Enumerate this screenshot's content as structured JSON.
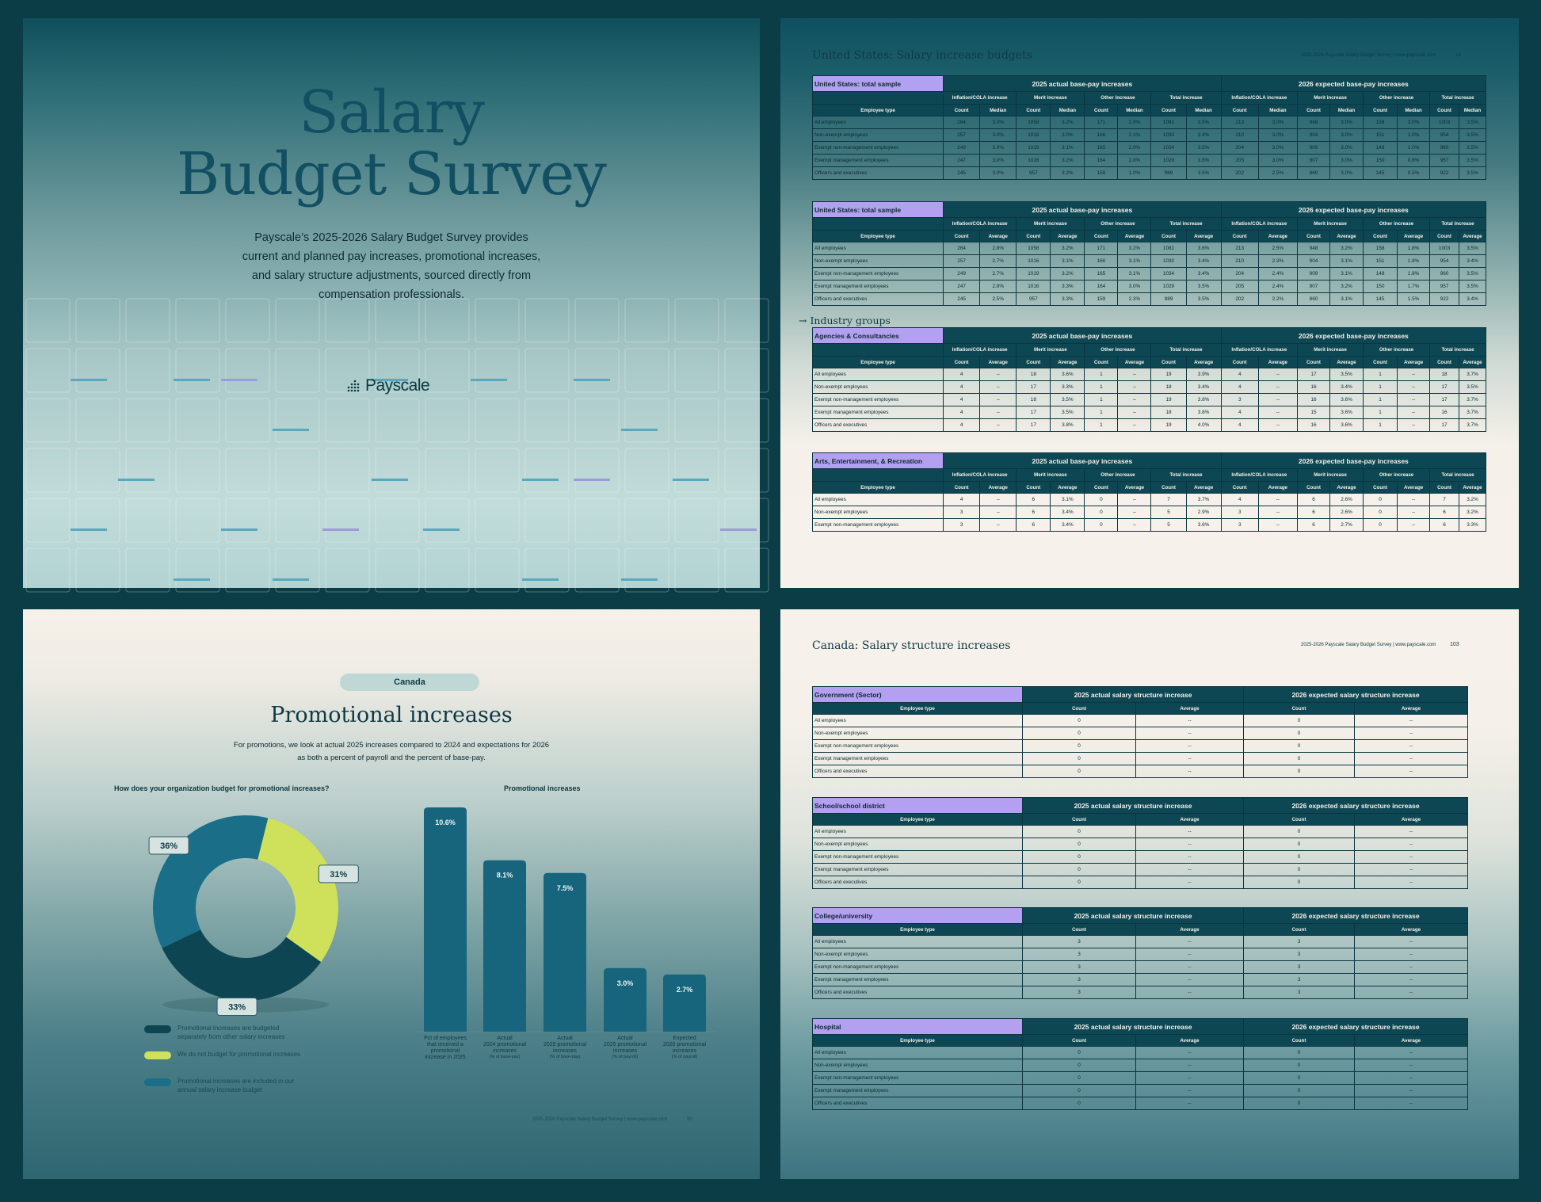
{
  "colors": {
    "frame": "#0b3d47",
    "teal": "#1a6e88",
    "dark": "#0e4552",
    "lime": "#cfe05a",
    "lavender": "#b3a0f0"
  },
  "cover": {
    "title_line1": "Salary",
    "title_line2": "Budget Survey",
    "description": "Payscale’s 2025-2026 Salary Budget Survey provides current and planned pay increases, promotional increases, and salary structure adjustments, sourced directly from compensation professionals.",
    "logo_text": "Payscale",
    "logo_icon": "payscale-dots-icon"
  },
  "us_page": {
    "title": "United States: Salary increase budgets",
    "header_right": "2025-2026 Payscale Salary Budget Survey | www.payscale.com",
    "page_no": "13",
    "industry_label": "Industry groups",
    "industry_icon": "arrow-right-icon",
    "tables": [
      {
        "tag": "United States: total sample",
        "stat": "Median",
        "rows": [
          [
            "All employees",
            "264",
            "3.0%",
            "1058",
            "3.2%",
            "171",
            "2.0%",
            "1081",
            "3.5%",
            "213",
            "3.0%",
            "948",
            "3.0%",
            "158",
            "3.0%",
            "1003",
            "3.5%"
          ],
          [
            "Non-exempt employees",
            "257",
            "3.0%",
            "1016",
            "3.0%",
            "166",
            "2.1%",
            "1030",
            "3.4%",
            "210",
            "3.0%",
            "904",
            "3.0%",
            "151",
            "1.0%",
            "954",
            "3.5%"
          ],
          [
            "Exempt non-management employees",
            "249",
            "3.0%",
            "1019",
            "3.1%",
            "165",
            "2.0%",
            "1034",
            "3.5%",
            "204",
            "3.0%",
            "909",
            "3.0%",
            "148",
            "1.0%",
            "960",
            "3.5%"
          ],
          [
            "Exempt management employees",
            "247",
            "3.0%",
            "1016",
            "3.2%",
            "164",
            "2.0%",
            "1029",
            "3.5%",
            "205",
            "3.0%",
            "907",
            "3.0%",
            "150",
            "0.8%",
            "957",
            "3.5%"
          ],
          [
            "Officers and executives",
            "245",
            "3.0%",
            "957",
            "3.2%",
            "159",
            "1.0%",
            "989",
            "3.5%",
            "202",
            "2.5%",
            "860",
            "3.0%",
            "145",
            "0.5%",
            "922",
            "3.5%"
          ]
        ]
      },
      {
        "tag": "United States: total sample",
        "stat": "Average",
        "rows": [
          [
            "All employees",
            "264",
            "2.8%",
            "1058",
            "3.2%",
            "171",
            "3.2%",
            "1081",
            "3.6%",
            "213",
            "2.5%",
            "948",
            "3.2%",
            "158",
            "1.8%",
            "1003",
            "3.5%"
          ],
          [
            "Non-exempt employees",
            "257",
            "2.7%",
            "1016",
            "3.1%",
            "166",
            "3.1%",
            "1030",
            "3.4%",
            "210",
            "2.3%",
            "904",
            "3.1%",
            "151",
            "1.8%",
            "954",
            "3.4%"
          ],
          [
            "Exempt non-management employees",
            "249",
            "2.7%",
            "1019",
            "3.2%",
            "165",
            "3.1%",
            "1034",
            "3.4%",
            "204",
            "2.4%",
            "909",
            "3.1%",
            "148",
            "1.8%",
            "960",
            "3.5%"
          ],
          [
            "Exempt management employees",
            "247",
            "2.8%",
            "1016",
            "3.3%",
            "164",
            "3.0%",
            "1029",
            "3.5%",
            "205",
            "2.4%",
            "907",
            "3.2%",
            "150",
            "1.7%",
            "957",
            "3.5%"
          ],
          [
            "Officers and executives",
            "245",
            "2.5%",
            "957",
            "3.3%",
            "159",
            "2.3%",
            "989",
            "3.5%",
            "202",
            "2.2%",
            "860",
            "3.1%",
            "145",
            "1.5%",
            "922",
            "3.4%"
          ]
        ]
      },
      {
        "tag": "Agencies & Consultancies",
        "stat": "Average",
        "rows": [
          [
            "All employees",
            "4",
            "--",
            "18",
            "3.6%",
            "1",
            "--",
            "19",
            "3.9%",
            "4",
            "--",
            "17",
            "3.5%",
            "1",
            "--",
            "18",
            "3.7%"
          ],
          [
            "Non-exempt employees",
            "4",
            "--",
            "17",
            "3.3%",
            "1",
            "--",
            "18",
            "3.4%",
            "4",
            "--",
            "16",
            "3.4%",
            "1",
            "--",
            "17",
            "3.5%"
          ],
          [
            "Exempt non-management employees",
            "4",
            "--",
            "18",
            "3.5%",
            "1",
            "--",
            "19",
            "3.8%",
            "3",
            "--",
            "16",
            "3.6%",
            "1",
            "--",
            "17",
            "3.7%"
          ],
          [
            "Exempt management employees",
            "4",
            "--",
            "17",
            "3.5%",
            "1",
            "--",
            "18",
            "3.8%",
            "4",
            "--",
            "15",
            "3.6%",
            "1",
            "--",
            "16",
            "3.7%"
          ],
          [
            "Officers and executives",
            "4",
            "--",
            "17",
            "3.8%",
            "1",
            "--",
            "19",
            "4.0%",
            "4",
            "--",
            "16",
            "3.6%",
            "1",
            "--",
            "17",
            "3.7%"
          ]
        ]
      },
      {
        "tag": "Arts, Entertainment, & Recreation",
        "stat": "Average",
        "rows": [
          [
            "All employees",
            "4",
            "--",
            "6",
            "3.1%",
            "0",
            "--",
            "7",
            "3.7%",
            "4",
            "--",
            "6",
            "2.6%",
            "0",
            "--",
            "7",
            "3.2%"
          ],
          [
            "Non-exempt employees",
            "3",
            "--",
            "6",
            "3.4%",
            "0",
            "--",
            "5",
            "2.9%",
            "3",
            "--",
            "6",
            "2.6%",
            "0",
            "--",
            "6",
            "3.2%"
          ],
          [
            "Exempt non-management employees",
            "3",
            "--",
            "6",
            "3.4%",
            "0",
            "--",
            "5",
            "3.6%",
            "3",
            "--",
            "6",
            "2.7%",
            "0",
            "--",
            "6",
            "3.3%"
          ]
        ]
      }
    ],
    "group_2025": "2025 actual base-pay increases",
    "group_2026": "2026 expected base-pay increases",
    "sub_headers": [
      "Inflation/COLA increase",
      "Merit increase",
      "Other increase",
      "Total increase",
      "Inflation/COLA increase",
      "Merit increase",
      "Other increase",
      "Total increase"
    ],
    "employee_type": "Employee type",
    "count_label": "Count"
  },
  "promo_page": {
    "pill": "Canada",
    "title": "Promotional increases",
    "description": "For promotions, we look at actual 2025 increases compared to 2024 and expectations for 2026 as both a percent of payroll and the percent of base-pay.",
    "donut_subtitle": "How does your organization budget for promotional increases?",
    "bar_subtitle": "Promotional increases",
    "footer": "2025-2026 Payscale Salary Budget Survey | www.payscale.com",
    "page_no": "90"
  },
  "chart_data": [
    {
      "type": "pie",
      "title": "How does your organization budget for promotional increases?",
      "slices": [
        {
          "label": "Promotional increases are budgeted separately from other salary increases",
          "value": 33,
          "display": "33%",
          "color": "#0e4552"
        },
        {
          "label": "We do not budget for promotional increases",
          "value": 31,
          "display": "31%",
          "color": "#cfe05a"
        },
        {
          "label": "Promotional increases are included in our annual salary increase budget",
          "value": 36,
          "display": "36%",
          "color": "#1a6e88"
        }
      ]
    },
    {
      "type": "bar",
      "title": "Promotional increases",
      "ylim": [
        0,
        11
      ],
      "categories": [
        {
          "lines": [
            "Pct of employees",
            "that received a",
            "promotional",
            "increase in 2025"
          ],
          "sub": ""
        },
        {
          "lines": [
            "Actual",
            "2024 promotional",
            "increases"
          ],
          "sub": "(% of base-pay)"
        },
        {
          "lines": [
            "Actual",
            "2025 promotional",
            "increases"
          ],
          "sub": "(% of base-pay)"
        },
        {
          "lines": [
            "Actual",
            "2025 promotional",
            "increases"
          ],
          "sub": "(% of payroll)"
        },
        {
          "lines": [
            "Expected",
            "2026 promotional",
            "increases"
          ],
          "sub": "(% of payroll)"
        }
      ],
      "values": [
        10.6,
        8.1,
        7.5,
        3.0,
        2.7
      ],
      "labels": [
        "10.6%",
        "8.1%",
        "7.5%",
        "3.0%",
        "2.7%"
      ]
    }
  ],
  "canada_page": {
    "title": "Canada: Salary structure increases",
    "header_right": "2025-2026 Payscale Salary Budget Survey | www.payscale.com",
    "page_no": "103",
    "group_2025": "2025 actual salary structure increase",
    "group_2026": "2026 expected salary structure increase",
    "employee_type": "Employee type",
    "count_label": "Count",
    "avg_label": "Average",
    "tables": [
      {
        "tag": "Government (Sector)",
        "rows": [
          [
            "All employees",
            "0",
            "--",
            "0",
            "--"
          ],
          [
            "Non-exempt employees",
            "0",
            "--",
            "0",
            "--"
          ],
          [
            "Exempt non-management employees",
            "0",
            "--",
            "0",
            "--"
          ],
          [
            "Exempt management employees",
            "0",
            "--",
            "0",
            "--"
          ],
          [
            "Officers and executives",
            "0",
            "--",
            "0",
            "--"
          ]
        ]
      },
      {
        "tag": "School/school district",
        "rows": [
          [
            "All employees",
            "0",
            "--",
            "0",
            "--"
          ],
          [
            "Non-exempt employees",
            "0",
            "--",
            "0",
            "--"
          ],
          [
            "Exempt non-management employees",
            "0",
            "--",
            "0",
            "--"
          ],
          [
            "Exempt management employees",
            "0",
            "--",
            "0",
            "--"
          ],
          [
            "Officers and executives",
            "0",
            "--",
            "0",
            "--"
          ]
        ]
      },
      {
        "tag": "College/university",
        "rows": [
          [
            "All employees",
            "3",
            "--",
            "3",
            "--"
          ],
          [
            "Non-exempt employees",
            "3",
            "--",
            "3",
            "--"
          ],
          [
            "Exempt non-management employees",
            "3",
            "--",
            "3",
            "--"
          ],
          [
            "Exempt management employees",
            "3",
            "--",
            "3",
            "--"
          ],
          [
            "Officers and executives",
            "3",
            "--",
            "3",
            "--"
          ]
        ]
      },
      {
        "tag": "Hospital",
        "rows": [
          [
            "All employees",
            "0",
            "--",
            "0",
            "--"
          ],
          [
            "Non-exempt employees",
            "0",
            "--",
            "0",
            "--"
          ],
          [
            "Exempt non-management employees",
            "0",
            "--",
            "0",
            "--"
          ],
          [
            "Exempt management employees",
            "0",
            "--",
            "0",
            "--"
          ],
          [
            "Officers and executives",
            "0",
            "--",
            "0",
            "--"
          ]
        ]
      }
    ]
  }
}
